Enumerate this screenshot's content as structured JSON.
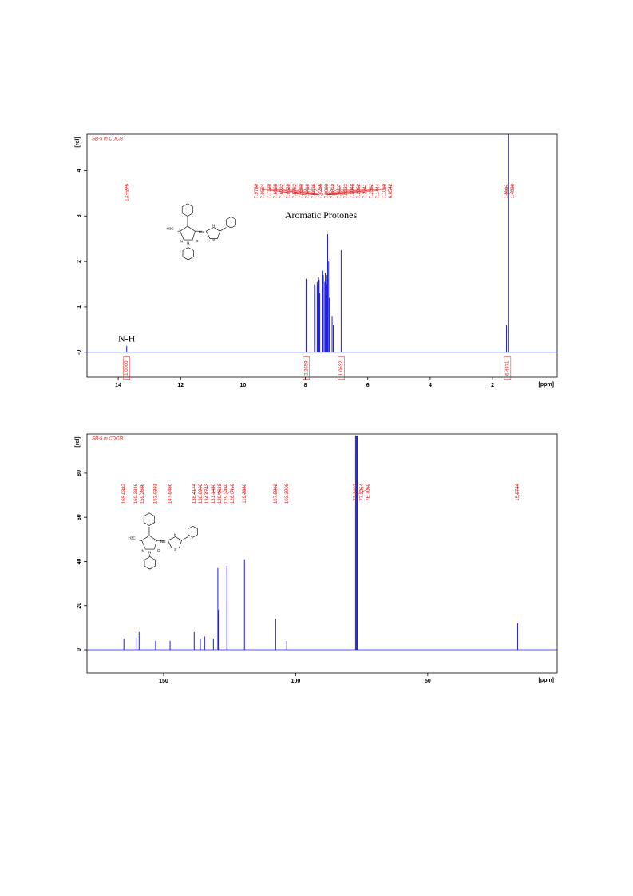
{
  "chart_data": [
    {
      "type": "nmr",
      "title": "SB-5 in CDCl3",
      "y_label": "[rel]",
      "x_label": "[ppm]",
      "xlim": [
        15,
        -0.07
      ],
      "ylim": [
        -0.55,
        4.8
      ],
      "xticks": [
        14,
        12,
        10,
        8,
        6,
        4,
        2
      ],
      "yticks": [
        {
          "value": 0,
          "label": "-0"
        },
        1,
        2,
        3,
        4
      ],
      "color": "#1f1fdd",
      "label_color": "#e02020",
      "annotations": [
        "N-H",
        "Aromatic Protones"
      ],
      "structure_labels": [
        "H3C",
        "N",
        "N",
        "O",
        "NH",
        "N",
        "S"
      ],
      "peaks": {
        "x": [
          13.7275,
          7.978,
          7.9584,
          7.712,
          7.6928,
          7.6222,
          7.6029,
          7.5782,
          7.558,
          7.541,
          7.4436,
          7.4256,
          7.3803,
          7.361,
          7.3407,
          7.3233,
          7.3048,
          7.2862,
          7.2541,
          7.2362,
          7.1444,
          7.106,
          6.8542,
          1.5551,
          1.4838
        ],
        "values": [
          0.14,
          1.62,
          1.6,
          1.5,
          1.45,
          1.55,
          1.5,
          1.65,
          1.6,
          1.3,
          1.8,
          1.7,
          1.55,
          1.75,
          1.6,
          1.5,
          1.7,
          2.6,
          2.0,
          1.2,
          0.8,
          0.6,
          2.25,
          0.6,
          4.8
        ],
        "labels": [
          "13.7275",
          "7.9780",
          "7.9584",
          "7.7120",
          "7.6928",
          "7.6222",
          "7.6029",
          "7.5782",
          "7.5580",
          "7.5410",
          "7.4436",
          "7.4256",
          "7.3803",
          "7.3610",
          "7.3407",
          "7.3233",
          "7.3048",
          "7.2862",
          "7.2541",
          "7.2362",
          "7.1444",
          "7.1060",
          "6.8542",
          "1.5551",
          "1.4838"
        ]
      },
      "integrals": {
        "x": [
          13.73,
          7.97,
          6.85,
          1.52
        ],
        "labels": [
          "1.0000",
          "2.2659",
          "1.0632",
          "6.4871"
        ]
      }
    },
    {
      "type": "nmr",
      "title": "SB-5 in CDCl3",
      "y_label": "[rel]",
      "x_label": "[ppm]",
      "xlim": [
        179,
        1
      ],
      "ylim": [
        -10.5,
        97.7
      ],
      "xticks": [
        150,
        100,
        50
      ],
      "yticks": [
        0,
        20,
        40,
        60,
        80
      ],
      "color": "#1f1fdd",
      "label_color": "#e02020",
      "structure_labels": [
        "H3C",
        "N",
        "N",
        "O",
        "NH",
        "N",
        "S"
      ],
      "peaks": {
        "x": [
          165.0387,
          160.3846,
          159.2686,
          153.0381,
          147.5486,
          138.4174,
          136.0903,
          134.4743,
          131.145,
          129.4638,
          129.2439,
          126.0419,
          119.388,
          107.5802,
          103.3908,
          77.3407,
          77.0254,
          76.7069,
          15.9744
        ],
        "values": [
          5,
          5.5,
          8,
          4,
          4,
          8,
          5,
          6,
          5,
          37,
          18,
          38,
          41,
          14,
          4,
          97,
          97,
          97,
          12
        ],
        "labels": [
          "165.0387",
          "160.3846",
          "159.2686",
          "153.0381",
          "147.5486",
          "138.4174",
          "136.0903",
          "134.4743",
          "131.1450",
          "129.4638",
          "129.2439",
          "126.0419",
          "119.3880",
          "107.5802",
          "103.3908",
          "77.3407",
          "77.0254",
          "76.7069",
          "15.9744"
        ]
      }
    }
  ]
}
